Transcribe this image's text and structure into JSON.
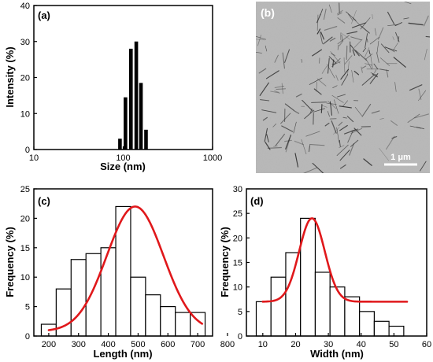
{
  "colors": {
    "bars_a": "#000000",
    "bars_hollow_fill": "#ffffff",
    "fit_curve": "#e0181b",
    "tem_background": "#b5b5b5",
    "fibers": "#2a2a2a"
  },
  "chart_data": [
    {
      "panel": "(a)",
      "type": "bar",
      "xscale": "log",
      "xlabel": "Size (nm)",
      "ylabel": "Intensity (%)",
      "xlim": [
        10,
        1000
      ],
      "ylim": [
        0,
        40
      ],
      "xticks": [
        "10",
        "100",
        "1000"
      ],
      "yticks": [
        "0",
        "10",
        "20",
        "30",
        "40"
      ],
      "x": [
        92,
        106,
        122,
        140,
        158,
        180
      ],
      "values": [
        3.0,
        14.5,
        28.0,
        30.0,
        18.5,
        5.5
      ]
    },
    {
      "panel": "(b)",
      "type": "image",
      "scale_bar": "1 μm"
    },
    {
      "panel": "(c)",
      "type": "bar",
      "xlabel": "Length (nm)",
      "ylabel": "Frequency (%)",
      "xlim": [
        150,
        750
      ],
      "ylim": [
        0,
        25
      ],
      "xticks": [
        "200",
        "300",
        "400",
        "500",
        "600",
        "700",
        "800"
      ],
      "yticks": [
        "0",
        "5",
        "10",
        "15",
        "20",
        "25"
      ],
      "bin_edges": [
        175,
        225,
        275,
        325,
        375,
        425,
        475,
        525,
        575,
        625,
        675,
        725
      ],
      "values": [
        2,
        8,
        13,
        14,
        15,
        22,
        10,
        7,
        5,
        4,
        4
      ],
      "fit": {
        "type": "gaussian",
        "x0": 200,
        "x1": 715,
        "baseline": 0.8,
        "amplitude": 21.2,
        "center": 490,
        "sigma": 95
      }
    },
    {
      "panel": "(d)",
      "type": "bar",
      "xlabel": "Width (nm)",
      "ylabel": "Frequency (%)",
      "xlim": [
        5,
        60
      ],
      "ylim": [
        0,
        30
      ],
      "xticks": [
        "10",
        "20",
        "30",
        "40",
        "50",
        "60"
      ],
      "yticks": [
        "0",
        "5",
        "10",
        "15",
        "20",
        "25",
        "30"
      ],
      "bin_edges": [
        8,
        12.5,
        17,
        21.5,
        26,
        30.5,
        35,
        39.5,
        44,
        48.5,
        53
      ],
      "values": [
        7,
        12,
        17,
        24,
        13,
        10,
        8,
        5,
        3,
        2
      ],
      "fit": {
        "type": "gaussian",
        "x0": 10,
        "x1": 54,
        "baseline": 7,
        "amplitude": 17,
        "center": 25,
        "sigma": 3.9
      }
    }
  ]
}
